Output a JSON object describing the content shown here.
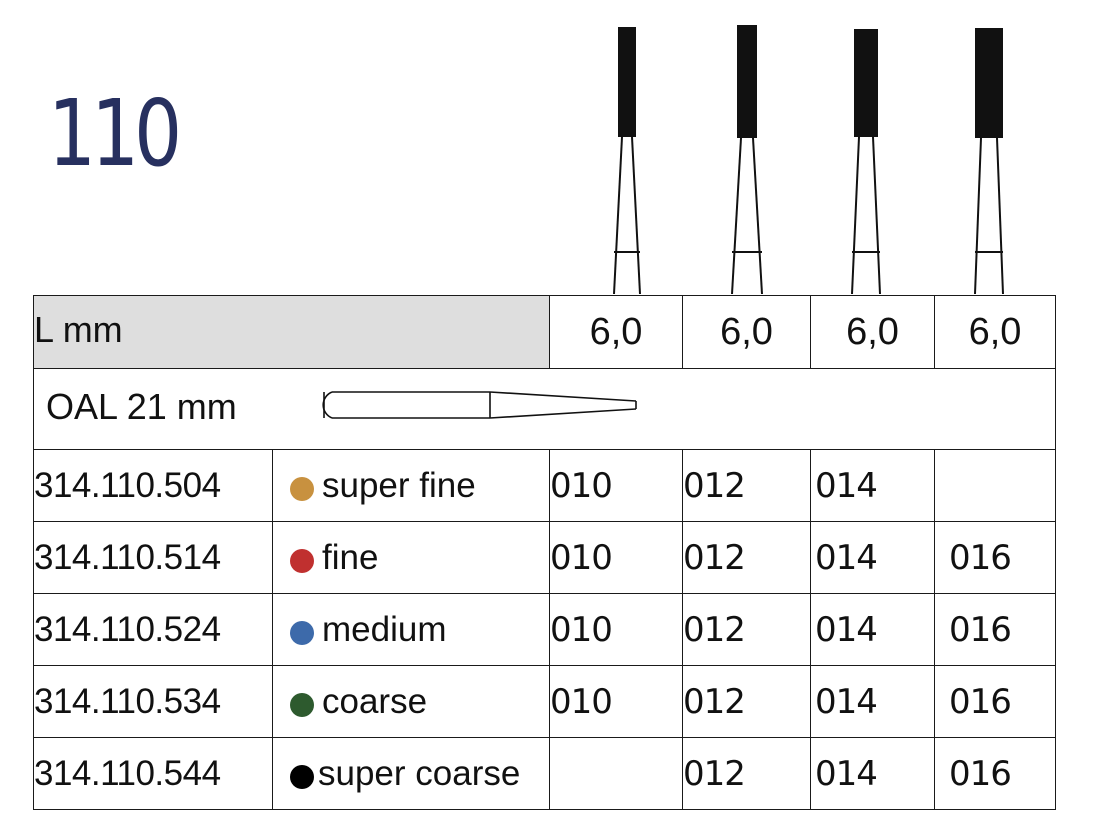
{
  "title": "110",
  "header": {
    "length_label": "L mm",
    "length_values": [
      "6,0",
      "6,0",
      "6,0",
      "6,0"
    ],
    "oal_label": "OAL 21 mm"
  },
  "rows": [
    {
      "ref": "314.110.504",
      "grit": "super fine",
      "color": "#c8913f",
      "sizes": [
        "010",
        "012",
        "014",
        ""
      ]
    },
    {
      "ref": "314.110.514",
      "grit": "fine",
      "color": "#c0302f",
      "sizes": [
        "010",
        "012",
        "014",
        "016"
      ]
    },
    {
      "ref": "314.110.524",
      "grit": "medium",
      "color": "#3d6aaa",
      "sizes": [
        "010",
        "012",
        "014",
        "016"
      ]
    },
    {
      "ref": "314.110.534",
      "grit": "coarse",
      "color": "#2d5a2e",
      "sizes": [
        "010",
        "012",
        "014",
        "016"
      ]
    },
    {
      "ref": "314.110.544",
      "grit": "super coarse",
      "color": "#000000",
      "sizes": [
        "",
        "012",
        "014",
        "016"
      ]
    }
  ]
}
